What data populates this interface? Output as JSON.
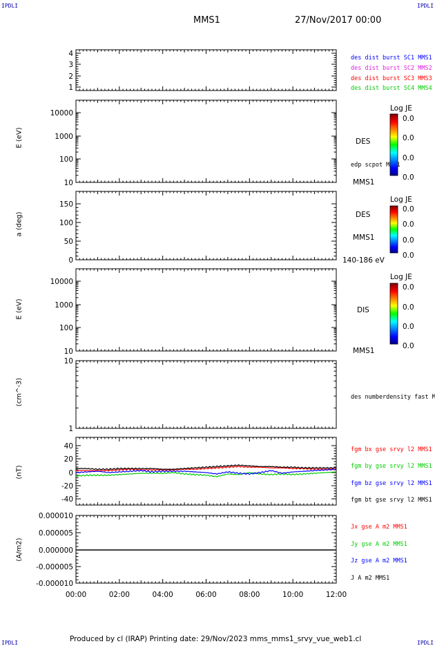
{
  "header": {
    "corner_tl": "IPDLI",
    "corner_tr": "IPDLI",
    "corner_bl": "IPDLI",
    "corner_br": "IPDLI",
    "title": "MMS1",
    "date": "27/Nov/2017 00:00"
  },
  "footer": {
    "text": "Produced by cl (IRAP)   Printing date: 29/Nov/2023   mms_mms1_srvy_vue_web1.cl"
  },
  "colors": {
    "red": "#ff0000",
    "green": "#00cc00",
    "blue": "#0000ff",
    "magenta": "#e020e0",
    "black": "#000000"
  },
  "time_axis": {
    "start_hour": 0,
    "end_hour": 12,
    "ticks": [
      "00:00",
      "02:00",
      "04:00",
      "06:00",
      "08:00",
      "10:00",
      "12:00"
    ]
  },
  "panels": [
    {
      "id": "burst",
      "ylabel": "",
      "yticks": [
        "4",
        "3",
        "2",
        "1"
      ],
      "legend": [
        "des dist burst SC1 MMS1",
        "des dist burst SC2 MMS2",
        "des dist burst SC3 MMS3",
        "des dist burst SC4 MMS4"
      ],
      "legend_colors": [
        "#0000ff",
        "#e020e0",
        "#ff0000",
        "#00cc00"
      ]
    },
    {
      "id": "des-energy",
      "ylabel": "E (eV)",
      "yticks": [
        "10000",
        "1000",
        "100",
        "10"
      ],
      "side_label": "DES",
      "side_small": "edp scpot MMS1",
      "bottom_label": "MMS1",
      "colorbar": {
        "title": "Log JE",
        "ticks": [
          "0.0",
          "0.0",
          "0.0",
          "0.0"
        ]
      }
    },
    {
      "id": "des-pitch",
      "ylabel": "a (deg)",
      "yticks": [
        "150",
        "100",
        "50",
        "0"
      ],
      "side_label": "DES",
      "side_label2": "MMS1",
      "bottom_label": "140-186 eV",
      "colorbar": {
        "title": "Log JE",
        "ticks": [
          "0.0",
          "0.0",
          "0.0",
          "0.0"
        ]
      }
    },
    {
      "id": "dis-energy",
      "ylabel": "E (eV)",
      "yticks": [
        "10000",
        "1000",
        "100",
        "10"
      ],
      "side_label": "DIS",
      "bottom_label": "MMS1",
      "colorbar": {
        "title": "Log JE",
        "ticks": [
          "0.0",
          "0.0",
          "0.0",
          "0.0"
        ]
      }
    },
    {
      "id": "density",
      "ylabel": "(cm^-3)",
      "yticks": [
        "10",
        "1"
      ],
      "legend": [
        "des numberdensity fast M"
      ]
    },
    {
      "id": "bfield",
      "ylabel": "(nT)",
      "yticks": [
        "40",
        "20",
        "0",
        "-20",
        "-40"
      ],
      "legend": [
        "fgm bx gse srvy l2 MMS1",
        "fgm by gse srvy l2 MMS1",
        "fgm bz gse srvy l2 MMS1",
        "fgm bt gse srvy l2 MMS1"
      ],
      "legend_colors": [
        "#ff0000",
        "#00cc00",
        "#0000ff",
        "#000000"
      ]
    },
    {
      "id": "current",
      "ylabel": "(A/m2)",
      "yticks": [
        "0.000010",
        "0.000005",
        "0.000000",
        "-0.000005",
        "-0.000010"
      ],
      "legend": [
        "Jx gse A m2 MMS1",
        "Jy gse A m2 MMS1",
        "Jz gse A m2 MMS1",
        "J A m2 MMS1"
      ],
      "legend_colors": [
        "#ff0000",
        "#00cc00",
        "#0000ff",
        "#000000"
      ]
    }
  ],
  "chart_data": {
    "type": "line",
    "title": "MMS1",
    "x_unit": "hours since 27/Nov/2017 00:00",
    "xlim": [
      0,
      12
    ],
    "bfield": {
      "ylabel": "(nT)",
      "ylim": [
        -50,
        50
      ],
      "x": [
        0,
        0.5,
        1,
        1.5,
        2,
        2.5,
        3,
        3.5,
        4,
        4.5,
        5,
        5.5,
        6,
        6.5,
        7,
        7.5,
        8,
        8.5,
        9,
        9.5,
        10,
        10.5,
        11,
        11.5,
        12
      ],
      "series": [
        {
          "name": "fgm bx gse srvy l2 MMS1",
          "color": "#ff0000",
          "values": [
            3,
            3,
            3,
            3,
            4,
            5,
            4,
            4,
            4,
            4,
            5,
            5,
            6,
            7,
            8,
            9,
            8,
            8,
            7,
            7,
            6,
            6,
            5,
            5,
            5
          ]
        },
        {
          "name": "fgm by gse srvy l2 MMS1",
          "color": "#00cc00",
          "values": [
            -5,
            -4,
            -4,
            -4,
            -3,
            -2,
            -1,
            -1,
            -1,
            0,
            -2,
            -3,
            -4,
            -6,
            -2,
            -3,
            0,
            -2,
            -3,
            -2,
            -3,
            -2,
            -1,
            0,
            1
          ]
        },
        {
          "name": "fgm bz gse srvy l2 MMS1",
          "color": "#0000ff",
          "values": [
            0,
            1,
            2,
            0,
            1,
            2,
            3,
            1,
            2,
            2,
            2,
            1,
            0,
            -2,
            1,
            -1,
            -2,
            0,
            3,
            -1,
            1,
            2,
            3,
            4,
            5
          ]
        },
        {
          "name": "fgm bt gse srvy l2 MMS1",
          "color": "#000000",
          "values": [
            6,
            6,
            5,
            5,
            6,
            6,
            6,
            6,
            5,
            5,
            6,
            7,
            8,
            9,
            10,
            11,
            10,
            9,
            9,
            8,
            8,
            7,
            7,
            7,
            7
          ]
        }
      ]
    },
    "current": {
      "ylabel": "(A/m2)",
      "ylim": [
        -1e-05,
        1e-05
      ],
      "x": [
        0,
        12
      ],
      "series": [
        {
          "name": "J A m2 MMS1",
          "color": "#000000",
          "values": [
            0,
            0
          ]
        }
      ]
    }
  }
}
